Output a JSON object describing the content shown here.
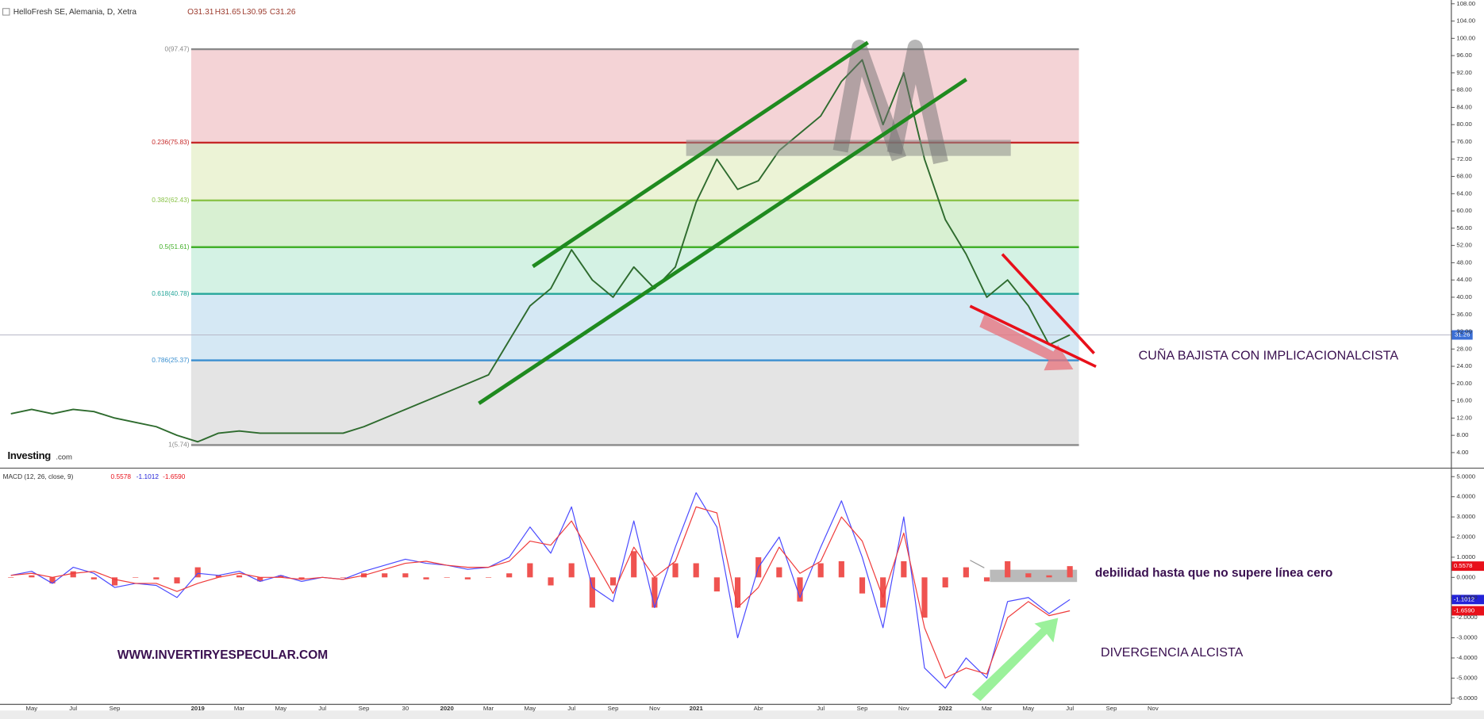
{
  "chart_data": [
    {
      "type": "line",
      "title": "HelloFresh SE, Alemania, D, Xetra",
      "ohlc": [
        "O31.31",
        "H31.65",
        "L30.95",
        "C31.26"
      ],
      "categories": [
        null,
        "May",
        null,
        "Jul",
        null,
        "Sep",
        null,
        null,
        null,
        "2019",
        null,
        "Mar",
        null,
        "May",
        null,
        "Jul",
        null,
        "Sep",
        null,
        "30",
        null,
        "2020",
        null,
        "Mar",
        null,
        "May",
        null,
        "Jul",
        null,
        "Sep",
        null,
        "Nov",
        null,
        "2021",
        null,
        null,
        "Abr",
        null,
        null,
        "Jul",
        null,
        "Sep",
        null,
        "Nov",
        null,
        "2022",
        null,
        "Mar",
        null,
        "May",
        null,
        "Jul",
        null,
        "Sep",
        null,
        "Nov",
        null
      ],
      "values": [
        13,
        14,
        13,
        14,
        13.5,
        12,
        11,
        10,
        8,
        6.5,
        8.5,
        9,
        8.5,
        8.5,
        8.5,
        8.5,
        8.5,
        10,
        12,
        14,
        16,
        18,
        20,
        22,
        30,
        38,
        42,
        51,
        44,
        40,
        47,
        42,
        47,
        62,
        72,
        65,
        67,
        74,
        78,
        82,
        90,
        95,
        80,
        92,
        72,
        58,
        50,
        40,
        44,
        38,
        29,
        31.26,
        null,
        null,
        null,
        null,
        null
      ],
      "color": "#2e6b2e",
      "ylim": [
        0.5,
        108.88
      ],
      "yticks": [
        {
          "value": 4,
          "label": "4.00"
        },
        {
          "value": 8,
          "label": "8.00"
        },
        {
          "value": 12,
          "label": "12.00"
        },
        {
          "value": 16,
          "label": "16.00"
        },
        {
          "value": 20,
          "label": "20.00"
        },
        {
          "value": 24,
          "label": "24.00"
        },
        {
          "value": 28,
          "label": "28.00"
        },
        {
          "value": 32,
          "label": "32.00"
        },
        {
          "value": 36,
          "label": "36.00"
        },
        {
          "value": 40,
          "label": "40.00"
        },
        {
          "value": 44,
          "label": "44.00"
        },
        {
          "value": 48,
          "label": "48.00"
        },
        {
          "value": 52,
          "label": "52.00"
        },
        {
          "value": 56,
          "label": "56.00"
        },
        {
          "value": 60,
          "label": "60.00"
        },
        {
          "value": 64,
          "label": "64.00"
        },
        {
          "value": 68,
          "label": "68.00"
        },
        {
          "value": 72,
          "label": "72.00"
        },
        {
          "value": 76,
          "label": "76.00"
        },
        {
          "value": 80,
          "label": "80.00"
        },
        {
          "value": 84,
          "label": "84.00"
        },
        {
          "value": 88,
          "label": "88.00"
        },
        {
          "value": 92,
          "label": "92.00"
        },
        {
          "value": 96,
          "label": "96.00"
        },
        {
          "value": 100,
          "label": "100.00"
        },
        {
          "value": 104,
          "label": "104.00"
        },
        {
          "value": 108,
          "label": "108.00"
        }
      ],
      "last_price": 31.26,
      "last_price_color": "#3b6fd6",
      "fib_levels": [
        {
          "label": "0(97.47)",
          "value": 97.47,
          "color": "#8a8a8a",
          "fill": "#f4d3d6"
        },
        {
          "label": "0.236(75.83)",
          "value": 75.83,
          "color": "#c62828",
          "fill": "#ecf3d6"
        },
        {
          "label": "0.382(62.43)",
          "value": 62.43,
          "color": "#8bc34a",
          "fill": "#d8f0d2"
        },
        {
          "label": "0.5(51.61)",
          "value": 51.61,
          "color": "#43b02a",
          "fill": "#d4f2e4"
        },
        {
          "label": "0.618(40.78)",
          "value": 40.78,
          "color": "#26a69a",
          "fill": "#d5e8f4"
        },
        {
          "label": "0.786(25.37)",
          "value": 25.37,
          "color": "#3a8fd0",
          "fill": "#e4e4e4"
        },
        {
          "label": "1(5.74)",
          "value": 5.74,
          "color": "#8a8a8a",
          "fill": null
        }
      ],
      "annotation": "CUÑA BAJISTA CON IMPLICACIONALCISTA",
      "logo": "Investing",
      "logo_suffix": ".com"
    },
    {
      "type": "macd",
      "title": "MACD (12, 26, close, 9)",
      "histogram_values": [
        0.0,
        0.1,
        -0.3,
        0.3,
        -0.1,
        -0.4,
        0.0,
        -0.1,
        -0.3,
        0.5,
        0.1,
        0.1,
        -0.2,
        0.1,
        -0.1,
        0.0,
        0.0,
        0.2,
        0.2,
        0.2,
        -0.1,
        0.0,
        -0.1,
        0.0,
        0.2,
        0.7,
        -0.4,
        0.7,
        -1.5,
        -0.4,
        1.3,
        -1.5,
        0.7,
        0.7,
        -0.7,
        -1.5,
        1.0,
        0.5,
        -1.2,
        0.7,
        0.8,
        -0.8,
        -1.5,
        0.8,
        -2.0,
        -0.5,
        0.5,
        -0.2,
        0.8,
        0.2,
        0.1,
        0.5578,
        null,
        null,
        null,
        null,
        null
      ],
      "histogram_color": "#ef5350",
      "macd_values": [
        0.1,
        0.3,
        -0.3,
        0.5,
        0.2,
        -0.5,
        -0.3,
        -0.4,
        -1.0,
        0.2,
        0.1,
        0.3,
        -0.2,
        0.1,
        -0.2,
        0.0,
        -0.1,
        0.3,
        0.6,
        0.9,
        0.7,
        0.6,
        0.4,
        0.5,
        1.0,
        2.5,
        1.2,
        3.5,
        -0.5,
        -1.2,
        2.8,
        -1.5,
        1.5,
        4.2,
        2.5,
        -3.0,
        0.5,
        2.0,
        -1.0,
        1.5,
        3.8,
        1.0,
        -2.5,
        3.0,
        -4.5,
        -5.5,
        -4.0,
        -5.0,
        -1.2,
        -1.0,
        -1.8,
        -1.1012,
        null,
        null,
        null,
        null,
        null
      ],
      "macd_color": "#4a4aff",
      "signal_values": [
        0.1,
        0.2,
        0.0,
        0.2,
        0.3,
        -0.1,
        -0.3,
        -0.3,
        -0.7,
        -0.3,
        0.0,
        0.2,
        0.0,
        0.0,
        -0.1,
        0.0,
        -0.1,
        0.1,
        0.4,
        0.7,
        0.8,
        0.6,
        0.5,
        0.5,
        0.8,
        1.8,
        1.6,
        2.8,
        1.0,
        -0.8,
        1.5,
        0.0,
        0.8,
        3.5,
        3.2,
        -1.5,
        -0.5,
        1.5,
        0.2,
        0.8,
        3.0,
        1.8,
        -1.0,
        2.2,
        -2.5,
        -5.0,
        -4.5,
        -4.8,
        -2.0,
        -1.2,
        -1.9,
        -1.659,
        null,
        null,
        null,
        null,
        null
      ],
      "signal_color": "#ef3b3b",
      "last_values": [
        {
          "value": 0.5578,
          "color": "#e8101a"
        },
        {
          "value": -1.1012,
          "color": "#2323d8"
        },
        {
          "value": -1.659,
          "label": "-1.6590",
          "color": "#e8101a"
        }
      ],
      "ylim": [
        -6.28,
        5.35
      ],
      "yticks": [
        {
          "value": 5,
          "label": "5.0000"
        },
        {
          "value": 4,
          "label": "4.0000"
        },
        {
          "value": 3,
          "label": "3.0000"
        },
        {
          "value": 2,
          "label": "2.0000"
        },
        {
          "value": 1,
          "label": "1.0000"
        },
        {
          "value": 0,
          "label": "0.0000"
        },
        {
          "value": -1,
          "label": "-1.0000"
        },
        {
          "value": -2,
          "label": "-2.0000"
        },
        {
          "value": -3,
          "label": "-3.0000"
        },
        {
          "value": -4,
          "label": "-4.0000"
        },
        {
          "value": -5,
          "label": "-5.0000"
        },
        {
          "value": -6,
          "label": "-6.0000"
        }
      ],
      "annotations": [
        "debilidad hasta que no supere línea cero",
        "DIVERGENCIA ALCISTA",
        "WWW.INVERTIRYESPECULAR.COM"
      ]
    }
  ]
}
